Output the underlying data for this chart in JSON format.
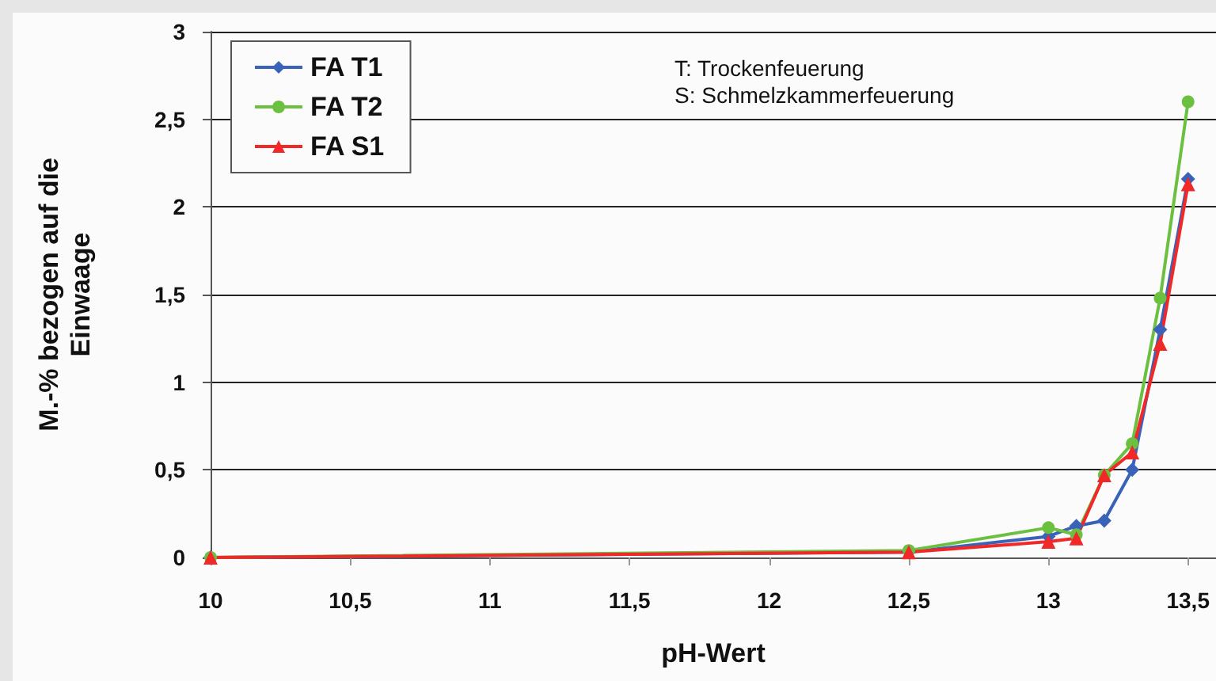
{
  "chart_data": {
    "type": "line",
    "xlabel": "pH-Wert",
    "ylabel": "M.-% bezogen auf die\nEinwaage",
    "x": [
      10,
      12.5,
      13,
      13.1,
      13.2,
      13.3,
      13.4,
      13.5
    ],
    "series": [
      {
        "name": "FA T1",
        "color": "#3a62b8",
        "marker": "diamond",
        "values": [
          0,
          0.03,
          0.12,
          0.18,
          0.21,
          0.5,
          1.3,
          2.16
        ]
      },
      {
        "name": "FA T2",
        "color": "#6cc040",
        "marker": "circle",
        "values": [
          0,
          0.04,
          0.17,
          0.13,
          0.47,
          0.65,
          1.48,
          2.6
        ]
      },
      {
        "name": "FA S1",
        "color": "#f02828",
        "marker": "triangle",
        "values": [
          0,
          0.03,
          0.09,
          0.11,
          0.47,
          0.6,
          1.22,
          2.13
        ]
      }
    ],
    "xlim": [
      10,
      13.6
    ],
    "xticks": [
      10,
      {
        "value": 10.5,
        "label": "10,5"
      },
      11,
      {
        "value": 11.5,
        "label": "11,5"
      },
      12,
      {
        "value": 12.5,
        "label": "12,5"
      },
      13,
      {
        "value": 13.5,
        "label": "13,5"
      }
    ],
    "ylim": [
      0,
      3
    ],
    "yticks": [
      0,
      {
        "value": 0.5,
        "label": "0,5"
      },
      1,
      {
        "value": 1.5,
        "label": "1,5"
      },
      2,
      {
        "value": 2.5,
        "label": "2,5"
      },
      3
    ],
    "grid": "y",
    "legend": "top left",
    "annotations": [
      "T: Trockenfeuerung",
      "S: Schmelzkammerfeuerung"
    ]
  }
}
